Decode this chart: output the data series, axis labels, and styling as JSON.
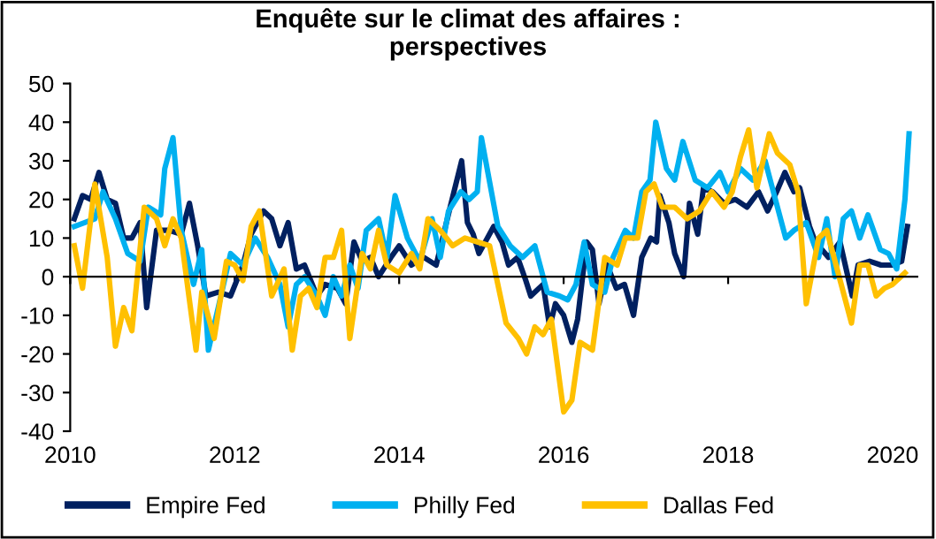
{
  "chart_data": {
    "type": "line",
    "title": "Enquête sur le climat des affaires :\nperspectives",
    "xlim": [
      2010,
      2020.3
    ],
    "xticks": [
      2010,
      2012,
      2014,
      2016,
      2018,
      2020
    ],
    "ylim": [
      -40,
      50
    ],
    "yticks": [
      -40,
      -30,
      -20,
      -10,
      0,
      10,
      20,
      30,
      40,
      50
    ],
    "legend": "bottom",
    "marker": "none",
    "line_style": "solid",
    "series": [
      {
        "name": "Empire Fed",
        "color": "#002060",
        "x": [
          2010.05,
          2010.15,
          2010.25,
          2010.35,
          2010.45,
          2010.55,
          2010.65,
          2010.75,
          2010.85,
          2010.93,
          2011.05,
          2011.2,
          2011.35,
          2011.45,
          2011.55,
          2011.65,
          2011.8,
          2011.95,
          2012.1,
          2012.2,
          2012.35,
          2012.45,
          2012.55,
          2012.65,
          2012.75,
          2012.85,
          2013.0,
          2013.1,
          2013.25,
          2013.35,
          2013.45,
          2013.55,
          2013.65,
          2013.75,
          2013.9,
          2014.0,
          2014.15,
          2014.3,
          2014.45,
          2014.62,
          2014.76,
          2014.83,
          2014.9,
          2014.97,
          2015.15,
          2015.25,
          2015.33,
          2015.44,
          2015.54,
          2015.6,
          2015.75,
          2015.83,
          2015.9,
          2016.0,
          2016.1,
          2016.17,
          2016.28,
          2016.35,
          2016.43,
          2016.53,
          2016.64,
          2016.74,
          2016.85,
          2016.95,
          2017.06,
          2017.13,
          2017.17,
          2017.28,
          2017.35,
          2017.46,
          2017.53,
          2017.63,
          2017.7,
          2017.81,
          2017.95,
          2018.09,
          2018.23,
          2018.37,
          2018.48,
          2018.59,
          2018.69,
          2018.8,
          2018.87,
          2018.99,
          2019.06,
          2019.22,
          2019.36,
          2019.51,
          2019.58,
          2019.72,
          2019.86,
          2020.0,
          2020.11,
          2020.18
        ],
        "values": [
          15,
          21,
          20,
          27,
          20,
          19,
          10,
          10,
          14,
          -8,
          12,
          12,
          11,
          19,
          8,
          -5,
          -4,
          -5,
          3,
          11,
          17,
          15,
          8,
          14,
          2,
          3,
          -5,
          -2,
          -3,
          -7,
          9,
          4,
          5,
          0,
          5,
          8,
          3,
          5,
          3,
          18,
          30,
          14,
          11,
          6,
          13,
          9,
          3,
          5,
          -1,
          -5,
          -2,
          -13,
          -7,
          -10,
          -17,
          -11,
          9,
          7,
          -7,
          3,
          -3,
          -2,
          -10,
          5,
          10,
          9,
          21,
          14,
          6,
          0,
          19,
          11,
          23,
          22,
          19,
          20,
          18,
          22,
          17,
          22,
          27,
          22,
          23,
          13,
          9,
          5,
          9,
          -5,
          3,
          4,
          3,
          3,
          4,
          13
        ]
      },
      {
        "name": "Philly Fed",
        "color": "#00b0f0",
        "x": [
          2010.05,
          2010.3,
          2010.4,
          2010.55,
          2010.7,
          2010.85,
          2010.95,
          2011.1,
          2011.15,
          2011.25,
          2011.35,
          2011.5,
          2011.6,
          2011.68,
          2011.8,
          2011.95,
          2012.1,
          2012.25,
          2012.4,
          2012.55,
          2012.65,
          2012.75,
          2012.85,
          2013.0,
          2013.1,
          2013.2,
          2013.3,
          2013.4,
          2013.5,
          2013.6,
          2013.75,
          2013.85,
          2013.95,
          2014.1,
          2014.25,
          2014.4,
          2014.5,
          2014.6,
          2014.75,
          2014.85,
          2014.95,
          2015.0,
          2015.2,
          2015.35,
          2015.5,
          2015.65,
          2015.8,
          2015.95,
          2016.05,
          2016.15,
          2016.25,
          2016.35,
          2016.5,
          2016.6,
          2016.75,
          2016.85,
          2016.95,
          2017.05,
          2017.12,
          2017.25,
          2017.35,
          2017.45,
          2017.6,
          2017.75,
          2017.9,
          2018.0,
          2018.15,
          2018.3,
          2018.45,
          2018.6,
          2018.7,
          2018.8,
          2018.95,
          2019.1,
          2019.2,
          2019.3,
          2019.4,
          2019.5,
          2019.6,
          2019.7,
          2019.85,
          2019.95,
          2020.05,
          2020.15,
          2020.2
        ],
        "values": [
          13,
          15,
          22,
          15,
          6,
          4,
          18,
          16,
          28,
          36,
          12,
          -2,
          7,
          -19,
          -8,
          6,
          3,
          10,
          5,
          -2,
          -13,
          -2,
          0,
          -5,
          -10,
          0,
          -5,
          3,
          -3,
          12,
          15,
          5,
          21,
          10,
          4,
          15,
          5,
          17,
          22,
          20,
          22,
          36,
          13,
          8,
          5,
          8,
          -4,
          -5,
          -6,
          -2,
          9,
          -2,
          -4,
          5,
          12,
          10,
          22,
          25,
          40,
          28,
          25,
          35,
          25,
          23,
          27,
          22,
          28,
          25,
          30,
          18,
          10,
          12,
          14,
          5,
          15,
          0,
          15,
          17,
          10,
          16,
          7,
          6,
          2,
          20,
          37
        ]
      },
      {
        "name": "Dallas Fed",
        "color": "#ffc000",
        "x": [
          2010.05,
          2010.15,
          2010.3,
          2010.45,
          2010.55,
          2010.65,
          2010.75,
          2010.9,
          2011.05,
          2011.15,
          2011.25,
          2011.35,
          2011.53,
          2011.6,
          2011.75,
          2011.9,
          2012.0,
          2012.1,
          2012.2,
          2012.3,
          2012.45,
          2012.6,
          2012.7,
          2012.8,
          2012.9,
          2013.0,
          2013.1,
          2013.2,
          2013.3,
          2013.4,
          2013.55,
          2013.65,
          2013.75,
          2013.85,
          2014.0,
          2014.15,
          2014.25,
          2014.35,
          2014.5,
          2014.65,
          2014.8,
          2014.95,
          2015.1,
          2015.3,
          2015.45,
          2015.55,
          2015.65,
          2015.75,
          2015.85,
          2016.0,
          2016.1,
          2016.2,
          2016.35,
          2016.5,
          2016.65,
          2016.75,
          2016.9,
          2017.0,
          2017.1,
          2017.2,
          2017.35,
          2017.5,
          2017.65,
          2017.8,
          2017.95,
          2018.05,
          2018.15,
          2018.25,
          2018.35,
          2018.5,
          2018.6,
          2018.75,
          2018.85,
          2018.95,
          2019.1,
          2019.2,
          2019.35,
          2019.5,
          2019.6,
          2019.7,
          2019.8,
          2019.9,
          2020.0,
          2020.15
        ],
        "values": [
          8,
          -3,
          24,
          5,
          -18,
          -8,
          -14,
          18,
          15,
          8,
          15,
          10,
          -19,
          -4,
          -16,
          4,
          3,
          -1,
          13,
          17,
          -5,
          2,
          -19,
          -5,
          -3,
          -8,
          5,
          5,
          12,
          -16,
          6,
          2,
          12,
          3,
          1,
          6,
          2,
          15,
          12,
          8,
          10,
          9,
          8,
          -12,
          -16,
          -20,
          -13,
          -15,
          -11,
          -35,
          -32,
          -17,
          -19,
          5,
          3,
          10,
          10,
          22,
          24,
          18,
          18,
          15,
          17,
          22,
          18,
          22,
          31,
          38,
          23,
          37,
          32,
          29,
          22,
          -7,
          10,
          12,
          0,
          -12,
          3,
          3,
          -5,
          -3,
          -2,
          1
        ]
      }
    ]
  }
}
